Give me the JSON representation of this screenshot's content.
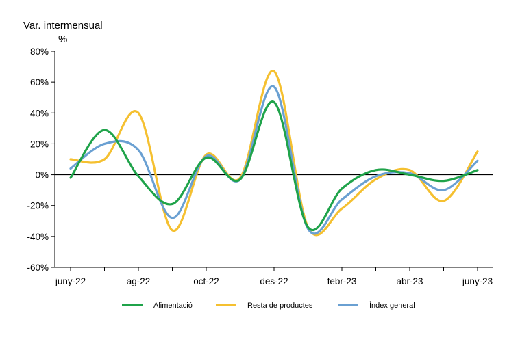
{
  "chart_data": {
    "type": "line",
    "ylabel": "Var. intermensual",
    "yunit": "%",
    "ylim": [
      -60,
      80
    ],
    "yticks": [
      80,
      60,
      40,
      20,
      0,
      -20,
      -40,
      -60
    ],
    "ytick_labels": [
      "80%",
      "60%",
      "40%",
      "20%",
      "0%",
      "-20%",
      "-40%",
      "-60%"
    ],
    "x": [
      "juny-22",
      "jul-22",
      "ag-22",
      "set-22",
      "oct-22",
      "nov-22",
      "des-22",
      "gen-23",
      "febr-23",
      "març-23",
      "abr-23",
      "maig-23",
      "juny-23"
    ],
    "xtick_labels": [
      {
        "index": 0,
        "label": "juny-22"
      },
      {
        "index": 2,
        "label": "ag-22"
      },
      {
        "index": 4,
        "label": "oct-22"
      },
      {
        "index": 6,
        "label": "des-22"
      },
      {
        "index": 8,
        "label": "febr-23"
      },
      {
        "index": 10,
        "label": "abr-23"
      },
      {
        "index": 12,
        "label": "juny-23"
      }
    ],
    "series": [
      {
        "name": "Alimentació",
        "color": "#1fa34a",
        "values": [
          -2,
          29,
          -1,
          -19,
          11,
          -3,
          47,
          -34,
          -9,
          3,
          0,
          -4,
          3
        ]
      },
      {
        "name": "Resta de productes",
        "color": "#f5c030",
        "values": [
          10,
          10,
          40,
          -36,
          13,
          -2,
          67,
          -34,
          -22,
          -3,
          3,
          -17,
          15
        ]
      },
      {
        "name": "Índex general",
        "color": "#6aa0d2",
        "values": [
          4,
          20,
          16,
          -28,
          12,
          -3,
          57,
          -35,
          -16,
          -1,
          1,
          -10,
          9
        ]
      }
    ],
    "legend_position": "bottom",
    "zero_line": true,
    "grid": false
  }
}
